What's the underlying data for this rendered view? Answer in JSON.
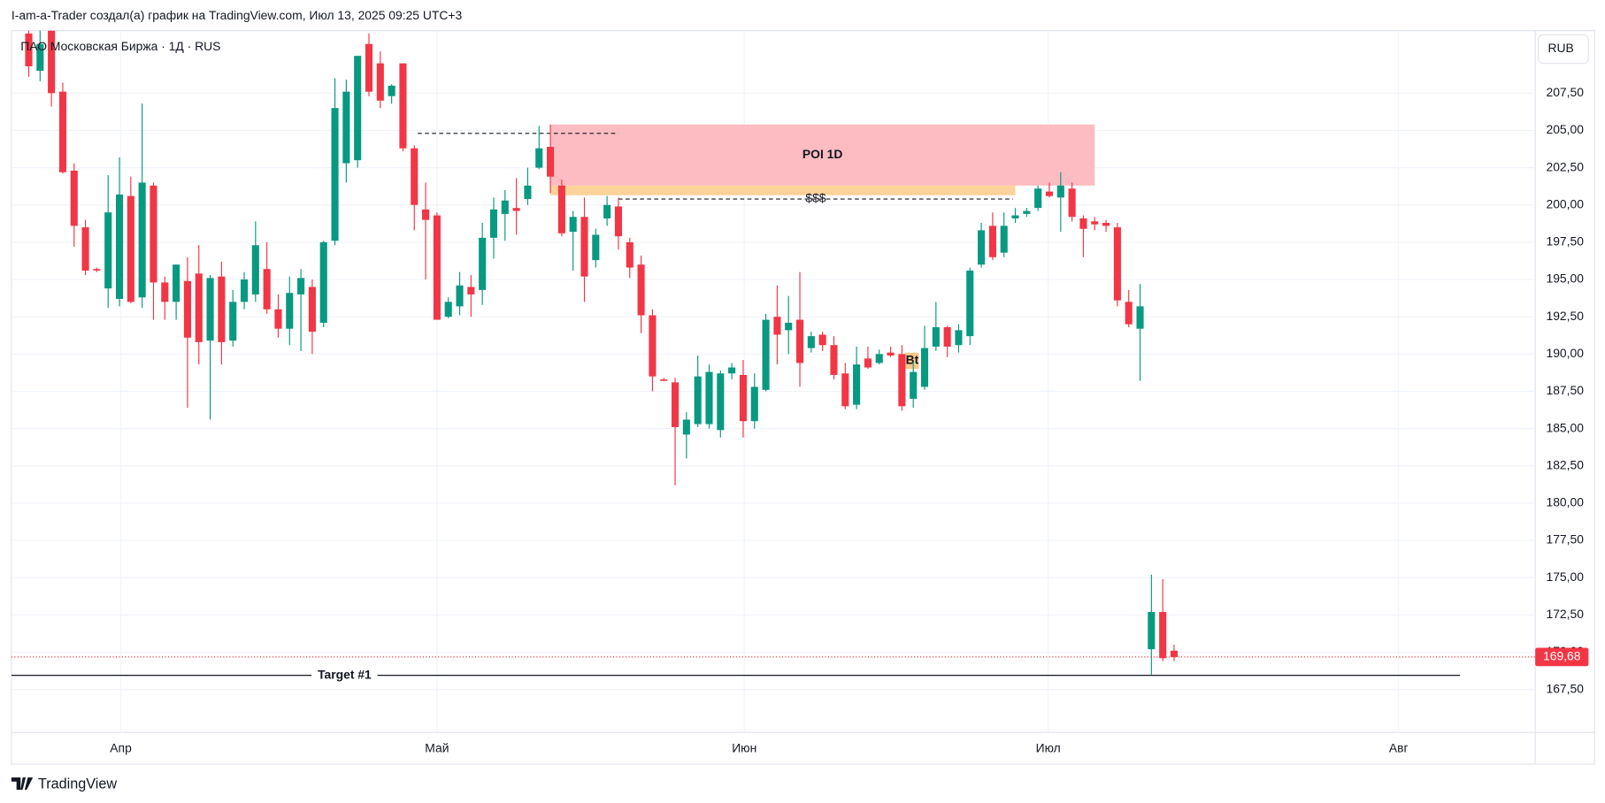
{
  "header": {
    "credit": "I-am-a-Trader создал(а) график на TradingView.com, Июл 13, 2025 09:25 UTC+3",
    "symbol": "ПАО Московская Биржа · 1Д · RUS",
    "currency": "RUB",
    "brand": "TradingView"
  },
  "chart_data": {
    "type": "candlestick",
    "up_color": "#089981",
    "down_color": "#f23645",
    "open": [
      211.5,
      209,
      211.8,
      207.6,
      202.3,
      198.5,
      195.7,
      194.4,
      193.7,
      200.6,
      193.8,
      201.3,
      194.8,
      193.5,
      194.9,
      195.4,
      190.9,
      195.2,
      190.9,
      193.5,
      194,
      195.7,
      193,
      191.7,
      194,
      194.5,
      192.1,
      197.6,
      202.8,
      203,
      210.8,
      209.5,
      207.3,
      209.5,
      203.8,
      199.7,
      199.3,
      192.5,
      193.2,
      194.5,
      194.3,
      197.8,
      199.4,
      199.8,
      200.4,
      202.5,
      203.9,
      201.3,
      198.2,
      199.2,
      196.3,
      199.1,
      199.9,
      197.5,
      196,
      192.6,
      188.3,
      188.1,
      184.6,
      185.3,
      185.3,
      184.9,
      188.7,
      188.6,
      185.5,
      187.6,
      192.5,
      191.6,
      192.3,
      190.4,
      191.3,
      190.6,
      188.7,
      186.6,
      189.7,
      189.4,
      190.1,
      190,
      187,
      187.8,
      190.5,
      191.8,
      190.6,
      191.2,
      196,
      198.6,
      196.8,
      199.1,
      199.4,
      199.8,
      200.9,
      200.5,
      201.1,
      199.1,
      198.9,
      198.8,
      198.5,
      193.5,
      191.7,
      170.2,
      172.7,
      170.1
    ],
    "high": [
      212.2,
      212,
      212.2,
      208.2,
      202.8,
      199,
      195.8,
      202,
      203.2,
      201.9,
      206.8,
      201.5,
      195.2,
      196,
      196.5,
      197.3,
      195.3,
      196.2,
      194.3,
      195.5,
      198.9,
      197.5,
      194,
      195.2,
      195.7,
      195,
      197.6,
      208.5,
      208.4,
      210,
      211.5,
      210.3,
      208.1,
      209.5,
      204,
      201.5,
      199.5,
      193.8,
      195.5,
      195.3,
      198.8,
      200.5,
      201,
      201.8,
      202.5,
      205.3,
      205.4,
      201.7,
      199.6,
      200.5,
      198.4,
      200.6,
      200.5,
      197.8,
      196.6,
      193,
      188.4,
      188.4,
      186.1,
      189.9,
      189.3,
      188.9,
      189.4,
      189.6,
      188.7,
      192.7,
      194.6,
      193.9,
      195.5,
      191.5,
      191.5,
      191.2,
      189.4,
      190.5,
      190.5,
      190.3,
      190.5,
      190.6,
      189.5,
      191.9,
      193.5,
      191.9,
      192,
      195.8,
      198.8,
      199.5,
      199.5,
      199.8,
      199.8,
      201.3,
      201.5,
      202.2,
      201.5,
      199.3,
      199.2,
      199,
      198.8,
      194.3,
      194.7,
      175.2,
      174.9,
      170.5
    ],
    "low": [
      208.6,
      208.3,
      206.6,
      202.1,
      197.2,
      195.3,
      195.5,
      193.1,
      193.2,
      193.4,
      193.1,
      192.3,
      192.3,
      192.3,
      186.4,
      189.3,
      185.6,
      189.3,
      190.5,
      193,
      193.5,
      192.7,
      191.1,
      190.6,
      190.2,
      190,
      191.8,
      197.3,
      201.5,
      202.5,
      207.3,
      206.5,
      206.8,
      203.6,
      198.3,
      195,
      192.3,
      192.4,
      192.6,
      192.5,
      193.3,
      196.4,
      197.6,
      198,
      200,
      202.4,
      200.8,
      197.9,
      195.6,
      193.5,
      195.8,
      198.6,
      197,
      195.1,
      191.4,
      187.5,
      188.2,
      181.2,
      183,
      185.1,
      185,
      184.4,
      188.3,
      184.4,
      185,
      187.5,
      189.3,
      190,
      187.8,
      190.1,
      190.2,
      188.3,
      186.3,
      186.3,
      189,
      189.3,
      189.8,
      186.2,
      186.4,
      187.6,
      190.2,
      189.8,
      190.1,
      190.6,
      195.8,
      196.3,
      196.5,
      198.8,
      199.2,
      199.6,
      200.5,
      198.2,
      198.9,
      196.5,
      198.3,
      198.2,
      193.2,
      191.8,
      188.2,
      168.5,
      169.4,
      169.4
    ],
    "close": [
      209.3,
      210.8,
      207.5,
      202.2,
      198.6,
      195.6,
      195.6,
      199.5,
      200.7,
      193.5,
      201.5,
      194.8,
      193.5,
      196,
      191.1,
      190.8,
      195.1,
      190.8,
      193.5,
      195,
      197.3,
      193,
      191.7,
      194.1,
      195.1,
      191.5,
      197.5,
      206.5,
      207.6,
      210,
      207.6,
      207,
      208,
      203.8,
      200,
      199,
      192.3,
      193.5,
      194.6,
      194,
      197.8,
      199.7,
      200.3,
      199.6,
      201.3,
      203.8,
      201.9,
      198.1,
      199.2,
      195.2,
      198,
      200,
      197.9,
      195.8,
      192.6,
      188.5,
      188.2,
      185.1,
      185.6,
      188.5,
      188.8,
      188.7,
      189.1,
      185.5,
      187.8,
      192.3,
      191.3,
      192.1,
      189.4,
      191.2,
      190.6,
      188.6,
      186.5,
      189.3,
      189.1,
      190,
      189.9,
      186.5,
      188.8,
      190.4,
      191.8,
      190.5,
      191.6,
      195.6,
      198.3,
      196.5,
      198.6,
      199.3,
      199.6,
      201.1,
      200.6,
      201.3,
      199.2,
      198.4,
      198.7,
      198.6,
      193.6,
      192,
      193.2,
      172.7,
      169.6,
      169.68
    ],
    "last_price": {
      "value": 169.68,
      "label": "169,68"
    },
    "xlim": [
      -1.53,
      132.85
    ],
    "xticks": [
      {
        "value": 8.12,
        "label": "Апр"
      },
      {
        "value": 36.0,
        "label": "Май"
      },
      {
        "value": 63.1,
        "label": "Июн"
      },
      {
        "value": 89.9,
        "label": "Июл"
      },
      {
        "value": 120.8,
        "label": "Авг"
      }
    ],
    "ylim": [
      164.62,
      211.69
    ],
    "yticks": [
      {
        "value": 167.5,
        "label": "167,50"
      },
      {
        "value": 170,
        "label": "170,00"
      },
      {
        "value": 172.5,
        "label": "172,50"
      },
      {
        "value": 175,
        "label": "175,00"
      },
      {
        "value": 177.5,
        "label": "177,50"
      },
      {
        "value": 180,
        "label": "180,00"
      },
      {
        "value": 182.5,
        "label": "182,50"
      },
      {
        "value": 185,
        "label": "185,00"
      },
      {
        "value": 187.5,
        "label": "187,50"
      },
      {
        "value": 190,
        "label": "190,00"
      },
      {
        "value": 192.5,
        "label": "192,50"
      },
      {
        "value": 195,
        "label": "195,00"
      },
      {
        "value": 197.5,
        "label": "197,50"
      },
      {
        "value": 200,
        "label": "200,00"
      },
      {
        "value": 202.5,
        "label": "202,50"
      },
      {
        "value": 205,
        "label": "205,00"
      },
      {
        "value": 207.5,
        "label": "207,50"
      }
    ],
    "grid": true,
    "annotations": [
      {
        "type": "box",
        "label": "POI 1D",
        "x0": 46,
        "x1": 94,
        "y0": 201.3,
        "y1": 205.4,
        "color": "#fdbcc1"
      },
      {
        "type": "box",
        "x0": 46,
        "x1": 87,
        "y0": 200.65,
        "y1": 201.3,
        "color": "#fbd39a"
      },
      {
        "type": "box",
        "label": "Bt",
        "x0": 77.3,
        "x1": 78.5,
        "y0": 189.0,
        "y1": 190.1,
        "color": "#f9c98d"
      },
      {
        "type": "level",
        "label": "$$$",
        "x0": 52,
        "x1": 86.8,
        "y": 200.4,
        "style": "dashed"
      },
      {
        "type": "level",
        "x0": 34.3,
        "x1": 52,
        "y": 204.8,
        "style": "dashed"
      },
      {
        "type": "level",
        "label": "Target #1",
        "x0": -1.53,
        "x1": 126.2,
        "y": 168.45,
        "style": "solid"
      }
    ]
  }
}
